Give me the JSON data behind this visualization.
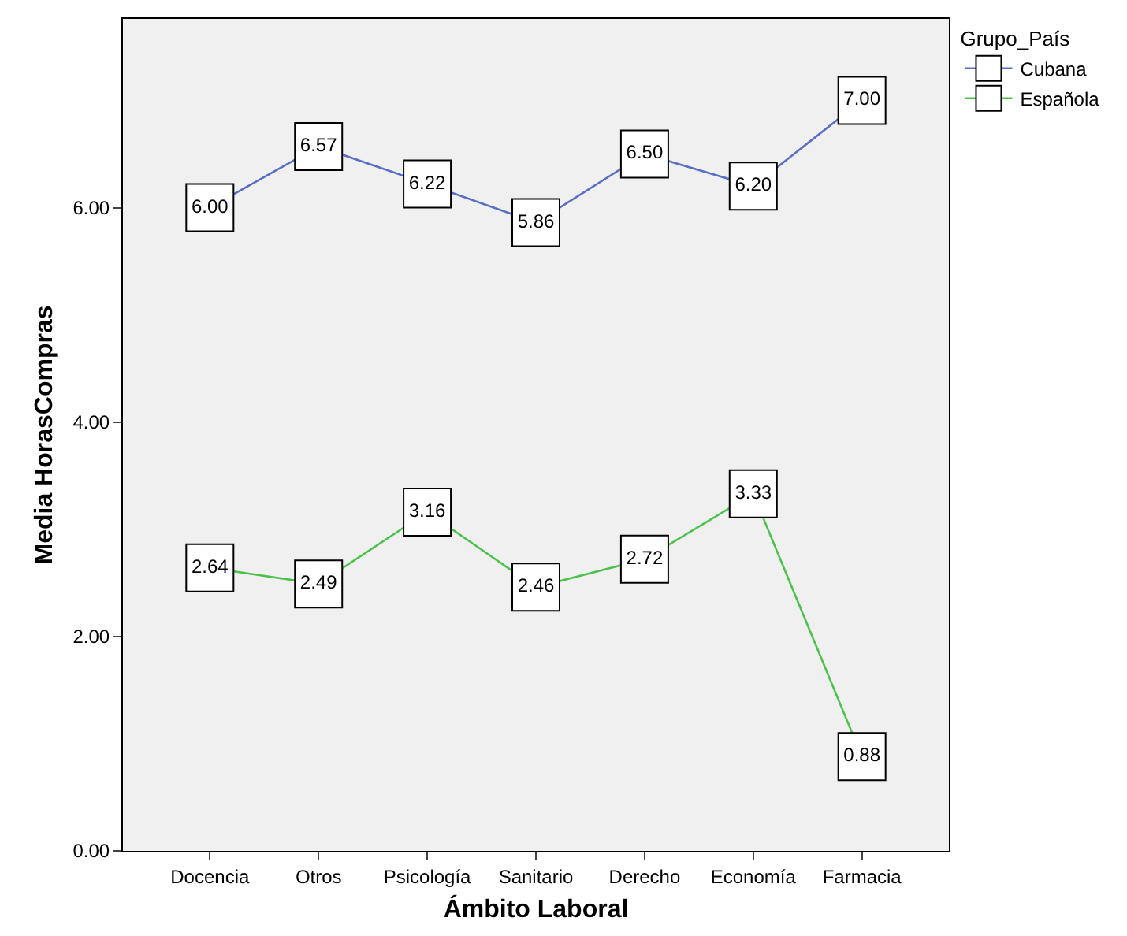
{
  "chart_data": {
    "type": "line",
    "xlabel": "Ámbito Laboral",
    "ylabel": "Media HorasCompras",
    "legend_title": "Grupo_País",
    "legend": "top right",
    "categories": [
      "Docencia",
      "Otros",
      "Psicología",
      "Sanitario",
      "Derecho",
      "Economía",
      "Farmacia"
    ],
    "series": [
      {
        "name": "Cubana",
        "color": "#5a6fc4",
        "values": [
          6.0,
          6.57,
          6.22,
          5.86,
          6.5,
          6.2,
          7.0
        ],
        "value_labels": [
          "6.00",
          "6.57",
          "6.22",
          "5.86",
          "6.50",
          "6.20",
          "7.00"
        ]
      },
      {
        "name": "Española",
        "color": "#4cc24c",
        "values": [
          2.64,
          2.49,
          3.16,
          2.46,
          2.72,
          3.33,
          0.88
        ],
        "value_labels": [
          "2.64",
          "2.49",
          "3.16",
          "2.46",
          "2.72",
          "3.33",
          "0.88"
        ]
      }
    ],
    "ylim": [
      0,
      7.76
    ],
    "yticks": [
      {
        "value": 0,
        "label": "0.00"
      },
      {
        "value": 2,
        "label": "2.00"
      },
      {
        "value": 4,
        "label": "4.00"
      },
      {
        "value": 6,
        "label": "6.00"
      }
    ],
    "grid": false,
    "marker": "square",
    "line_style": "solid"
  }
}
